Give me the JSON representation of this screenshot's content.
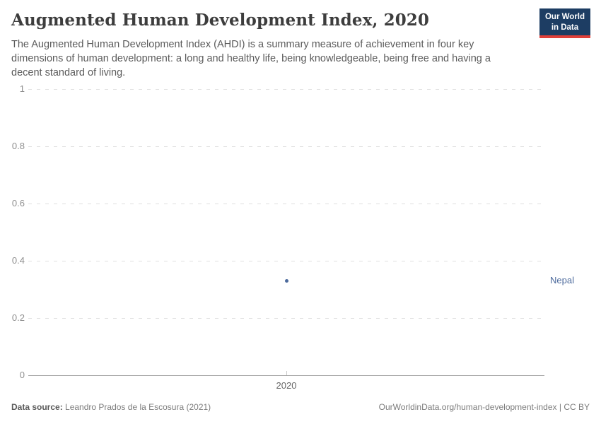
{
  "header": {
    "title": "Augmented Human Development Index, 2020",
    "subtitle": "The Augmented Human Development Index (AHDI) is a summary measure of achievement in four key dimensions of human development: a long and healthy life, being knowledgeable, being free and having a decent standard of living."
  },
  "logo": {
    "line1": "Our World",
    "line2": "in Data",
    "bg_color": "#1d3d63",
    "bar_color": "#e0403a"
  },
  "chart_data": {
    "type": "scatter",
    "title": "Augmented Human Development Index, 2020",
    "x": [
      2020
    ],
    "xticks": [
      "2020"
    ],
    "series": [
      {
        "name": "Nepal",
        "values": [
          0.33
        ],
        "color": "#4c6a9c"
      }
    ],
    "ylim": [
      0,
      1
    ],
    "ytick_values": [
      0,
      0.2,
      0.4,
      0.6,
      0.8,
      1
    ],
    "ytick_labels": [
      "0",
      "0.2",
      "0.4",
      "0.6",
      "0.8",
      "1"
    ],
    "xlabel": "",
    "ylabel": "",
    "grid": "horizontal-dashed",
    "legend_position": "entity-label-right"
  },
  "footer": {
    "source_label": "Data source:",
    "source_text": " Leandro Prados de la Escosura (2021)",
    "attribution": "OurWorldinData.org/human-development-index | CC BY"
  }
}
